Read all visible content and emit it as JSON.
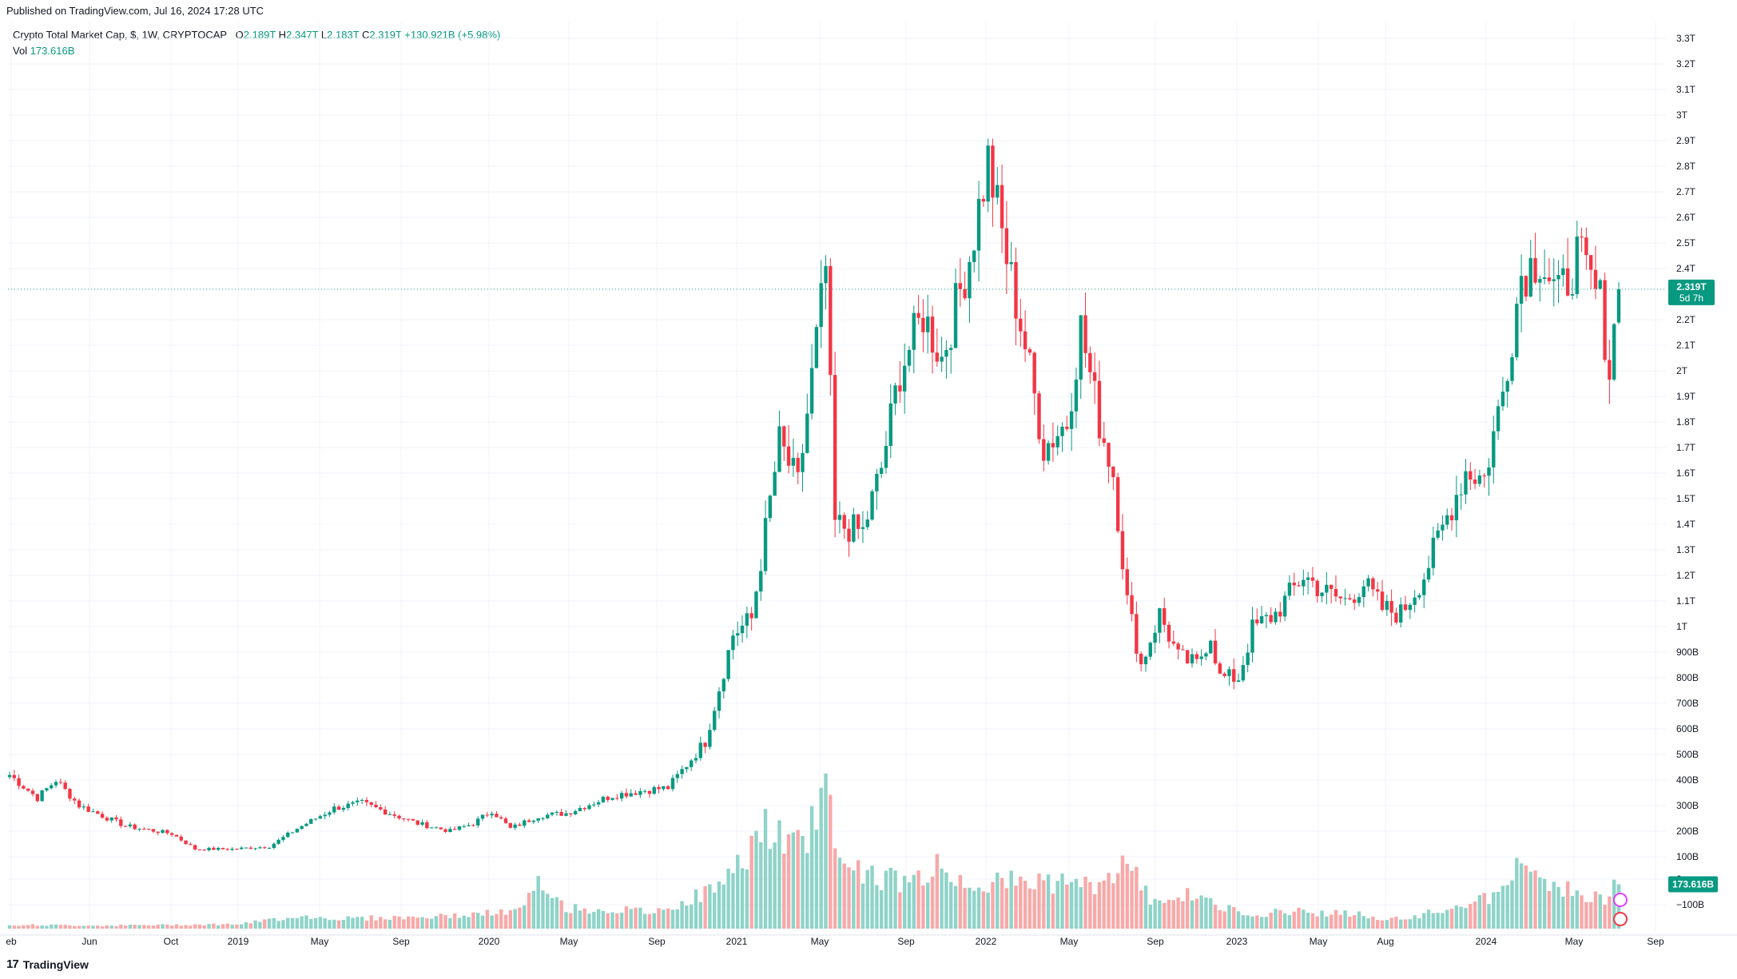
{
  "header": {
    "published": "Published on TradingView.com, Jul 16, 2024 17:28 UTC"
  },
  "legend": {
    "symbol": "Crypto Total Market Cap, $, 1W, CRYPTOCAP",
    "o_label": "O",
    "o_value": "2.189T",
    "h_label": "H",
    "h_value": "2.347T",
    "l_label": "L",
    "l_value": "2.183T",
    "c_label": "C",
    "c_value": "2.319T",
    "change": "+130.921B (+5.98%)",
    "vol_label": "Vol",
    "vol_value": "173.616B"
  },
  "footer": {
    "brand": "TradingView"
  },
  "colors": {
    "up": "#089981",
    "down": "#f23645",
    "up_vol": "#8fd3c8",
    "down_vol": "#f7a9a9",
    "grid": "#f0f3fa"
  },
  "chart_data": {
    "type": "candlestick",
    "price_axis": {
      "min": 0.7,
      "max": 3.3,
      "unit": "T",
      "ticks": [
        "3.3T",
        "3.2T",
        "3.1T",
        "3T",
        "2.9T",
        "2.8T",
        "2.7T",
        "2.6T",
        "2.5T",
        "2.4T",
        "2.2T",
        "2.1T",
        "2T",
        "1.9T",
        "1.8T",
        "1.7T",
        "1.6T",
        "1.5T",
        "1.4T",
        "1.3T",
        "1.2T",
        "1.1T",
        "1T",
        "900B",
        "800B",
        "700B",
        "600B",
        "500B",
        "400B",
        "300B",
        "200B",
        "100B",
        "0",
        "−100B"
      ]
    },
    "last_price_label": "2.319T",
    "countdown_label": "5d 7h",
    "volume_label": "173.616B",
    "time_axis": [
      "eb",
      "Jun",
      "Oct",
      "2019",
      "May",
      "Sep",
      "2020",
      "May",
      "Sep",
      "2021",
      "May",
      "Sep",
      "2022",
      "May",
      "Sep",
      "2023",
      "May",
      "Aug",
      "2024",
      "May",
      "Sep"
    ],
    "anchor_prices_T": [
      [
        0,
        0.42
      ],
      [
        6,
        0.33
      ],
      [
        10,
        0.4
      ],
      [
        15,
        0.3
      ],
      [
        25,
        0.22
      ],
      [
        35,
        0.19
      ],
      [
        40,
        0.13
      ],
      [
        48,
        0.13
      ],
      [
        56,
        0.14
      ],
      [
        62,
        0.21
      ],
      [
        70,
        0.29
      ],
      [
        76,
        0.31
      ],
      [
        82,
        0.27
      ],
      [
        88,
        0.23
      ],
      [
        95,
        0.2
      ],
      [
        100,
        0.23
      ],
      [
        104,
        0.28
      ],
      [
        108,
        0.21
      ],
      [
        114,
        0.26
      ],
      [
        120,
        0.27
      ],
      [
        130,
        0.34
      ],
      [
        137,
        0.36
      ],
      [
        142,
        0.37
      ],
      [
        150,
        0.55
      ],
      [
        156,
        0.97
      ],
      [
        160,
        1.03
      ],
      [
        166,
        1.72
      ],
      [
        170,
        1.55
      ],
      [
        176,
        2.4
      ],
      [
        178,
        1.4
      ],
      [
        184,
        1.37
      ],
      [
        188,
        1.62
      ],
      [
        192,
        2.0
      ],
      [
        197,
        2.22
      ],
      [
        201,
        2.05
      ],
      [
        207,
        2.45
      ],
      [
        211,
        2.82
      ],
      [
        215,
        2.44
      ],
      [
        219,
        2.1
      ],
      [
        223,
        1.7
      ],
      [
        228,
        1.8
      ],
      [
        231,
        2.17
      ],
      [
        235,
        1.8
      ],
      [
        238,
        1.6
      ],
      [
        241,
        1.1
      ],
      [
        244,
        0.85
      ],
      [
        248,
        1.05
      ],
      [
        252,
        0.88
      ],
      [
        256,
        0.85
      ],
      [
        259,
        0.97
      ],
      [
        261,
        0.8
      ],
      [
        265,
        0.8
      ],
      [
        268,
        0.99
      ],
      [
        273,
        1.05
      ],
      [
        279,
        1.2
      ],
      [
        284,
        1.13
      ],
      [
        288,
        1.1
      ],
      [
        292,
        1.17
      ],
      [
        296,
        1.07
      ],
      [
        300,
        1.05
      ],
      [
        305,
        1.2
      ],
      [
        310,
        1.43
      ],
      [
        314,
        1.61
      ],
      [
        318,
        1.58
      ],
      [
        322,
        1.92
      ],
      [
        326,
        2.38
      ],
      [
        330,
        2.45
      ],
      [
        334,
        2.28
      ],
      [
        338,
        2.45
      ],
      [
        343,
        2.27
      ],
      [
        345,
        2.0
      ],
      [
        347,
        2.32
      ]
    ],
    "volume_anchors_B": [
      [
        0,
        15
      ],
      [
        20,
        12
      ],
      [
        50,
        18
      ],
      [
        62,
        50
      ],
      [
        70,
        40
      ],
      [
        90,
        45
      ],
      [
        100,
        55
      ],
      [
        110,
        70
      ],
      [
        114,
        170
      ],
      [
        120,
        80
      ],
      [
        140,
        65
      ],
      [
        150,
        140
      ],
      [
        156,
        210
      ],
      [
        162,
        400
      ],
      [
        170,
        310
      ],
      [
        176,
        540
      ],
      [
        180,
        250
      ],
      [
        188,
        200
      ],
      [
        194,
        180
      ],
      [
        200,
        240
      ],
      [
        206,
        180
      ],
      [
        214,
        180
      ],
      [
        222,
        190
      ],
      [
        230,
        170
      ],
      [
        236,
        170
      ],
      [
        240,
        270
      ],
      [
        246,
        120
      ],
      [
        256,
        130
      ],
      [
        260,
        90
      ],
      [
        264,
        70
      ],
      [
        270,
        60
      ],
      [
        278,
        70
      ],
      [
        284,
        60
      ],
      [
        290,
        60
      ],
      [
        296,
        35
      ],
      [
        302,
        40
      ],
      [
        306,
        60
      ],
      [
        314,
        100
      ],
      [
        320,
        120
      ],
      [
        326,
        250
      ],
      [
        330,
        190
      ],
      [
        336,
        160
      ],
      [
        340,
        120
      ],
      [
        344,
        120
      ],
      [
        347,
        173.616
      ]
    ]
  }
}
